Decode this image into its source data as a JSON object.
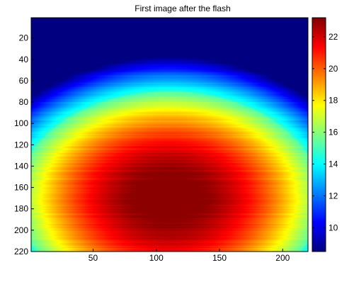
{
  "chart_data": {
    "type": "heatmap",
    "title": "First image after the flash",
    "colormap": "jet",
    "x_range": [
      1,
      220
    ],
    "y_range": [
      1,
      220
    ],
    "y_reversed": true,
    "x_ticks": [
      50,
      100,
      150,
      200
    ],
    "y_ticks": [
      20,
      40,
      60,
      80,
      100,
      120,
      140,
      160,
      180,
      200,
      220
    ],
    "colorbar": {
      "range": [
        8.5,
        23.2
      ],
      "ticks": [
        10,
        12,
        14,
        16,
        18,
        20,
        22
      ]
    },
    "field": {
      "description": "intensity peaks near x=110, y=170; dome-shaped region above ~19 bounded around y=80 at top and x≈15–200 at the bottom",
      "peak_value": 23,
      "min_value": 8.5,
      "peak_x": 110,
      "peak_y": 170
    }
  }
}
